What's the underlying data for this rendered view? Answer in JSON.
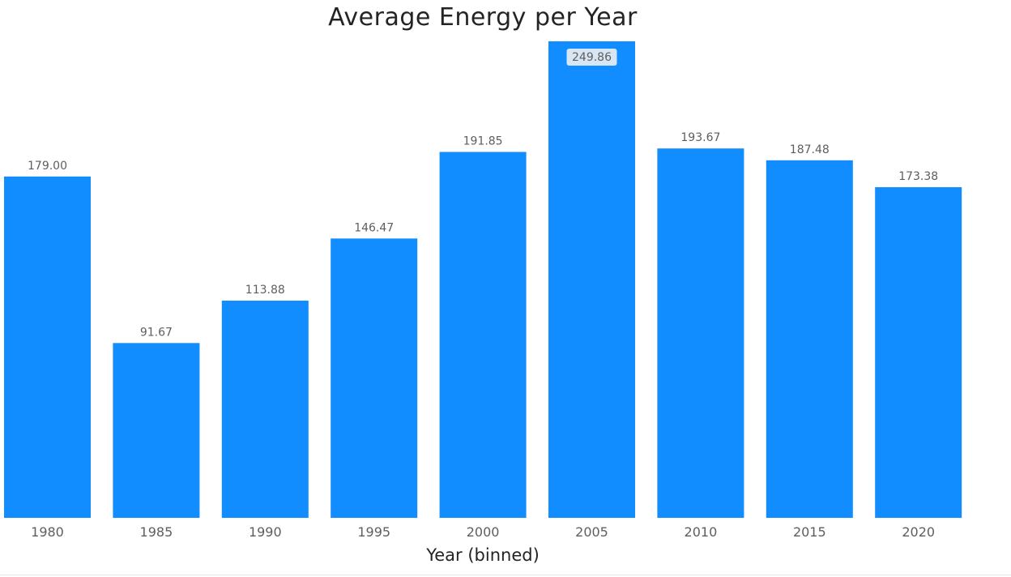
{
  "chart_data": {
    "type": "bar",
    "title": "Average Energy per Year",
    "xlabel": "Year (binned)",
    "ylabel": "",
    "categories": [
      "1980",
      "1985",
      "1990",
      "1995",
      "2000",
      "2005",
      "2010",
      "2015",
      "2020"
    ],
    "values": [
      179.0,
      91.67,
      113.88,
      146.47,
      191.85,
      249.86,
      193.67,
      187.48,
      173.38
    ],
    "data_labels": [
      "179.00",
      "91.67",
      "113.88",
      "146.47",
      "191.85",
      "249.86",
      "193.67",
      "187.48",
      "173.38"
    ],
    "ylim": [
      0,
      249.86
    ],
    "grid": false,
    "legend": "none",
    "bar_color": "#118DFF",
    "highlight_label_index": 5,
    "highlight_label_bg": "#D6E6F5"
  }
}
